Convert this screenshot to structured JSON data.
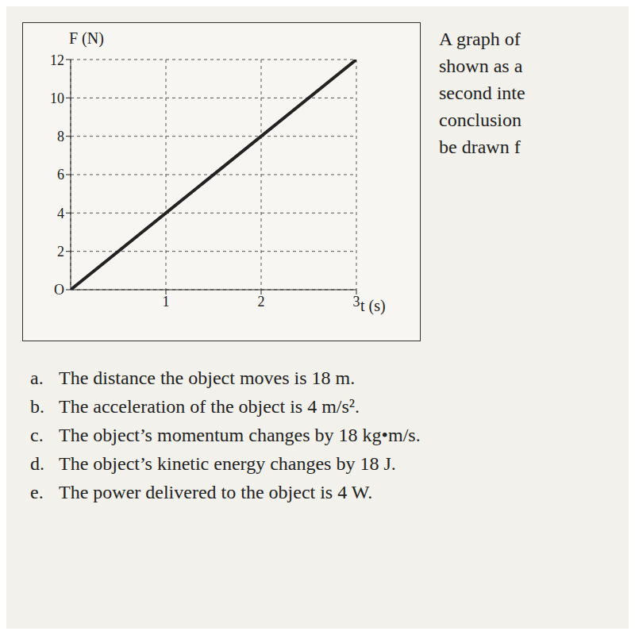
{
  "chart_data": {
    "type": "line",
    "y_label": "F (N)",
    "x_label": "t (s)",
    "x": [
      0,
      3
    ],
    "values": [
      0,
      12
    ],
    "color": "#222222",
    "xlim": [
      0,
      3
    ],
    "xticks": [
      1,
      2,
      3
    ],
    "ylim": [
      0,
      12
    ],
    "yticks": [
      {
        "value": 0,
        "label": "O"
      },
      2,
      4,
      6,
      8,
      10,
      12
    ],
    "grid": true
  },
  "question_fragments": [
    "A graph of",
    "shown as a",
    "second inte",
    "conclusion",
    "be drawn f"
  ],
  "options": [
    {
      "letter": "a.",
      "text": "The distance the object moves is 18 m."
    },
    {
      "letter": "b.",
      "text": "The acceleration of the object is 4 m/s²."
    },
    {
      "letter": "c.",
      "text": "The object’s momentum changes by 18 kg•m/s."
    },
    {
      "letter": "d.",
      "text": "The object’s kinetic energy changes by 18 J."
    },
    {
      "letter": "e.",
      "text": "The power delivered to the object is 4 W."
    }
  ]
}
